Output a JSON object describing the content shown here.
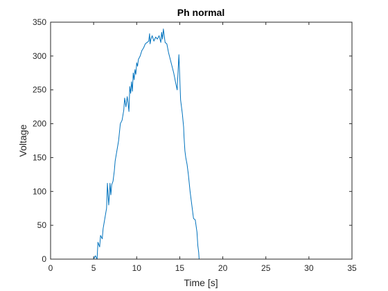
{
  "chart_data": {
    "type": "line",
    "title": "Ph normal",
    "xlabel": "Time [s]",
    "ylabel": "Voltage",
    "xlim": [
      0,
      35
    ],
    "ylim": [
      0,
      350
    ],
    "xticks": [
      0,
      5,
      10,
      15,
      20,
      25,
      30,
      35
    ],
    "yticks": [
      0,
      50,
      100,
      150,
      200,
      250,
      300,
      350
    ],
    "grid": false,
    "line_color": "#0072BD",
    "series": [
      {
        "x": [
          0,
          5.0,
          5.2,
          5.4,
          5.5,
          5.7,
          5.8,
          6.0,
          6.1,
          6.3,
          6.5,
          6.6,
          6.75,
          6.85,
          6.9,
          7.0,
          7.1,
          7.25,
          7.4,
          7.5,
          7.7,
          7.9,
          8.1,
          8.3,
          8.5,
          8.6,
          8.75,
          8.9,
          9.0,
          9.1,
          9.2,
          9.3,
          9.4,
          9.5,
          9.6,
          9.7,
          9.8,
          9.9,
          10.0,
          10.1,
          10.2,
          10.4,
          10.6,
          10.8,
          11.0,
          11.2,
          11.4,
          11.5,
          11.55,
          11.65,
          11.8,
          12.0,
          12.2,
          12.4,
          12.6,
          12.8,
          12.9,
          13.0,
          13.1,
          13.3,
          13.5,
          13.7,
          13.9,
          14.1,
          14.3,
          14.5,
          14.7,
          14.9,
          15.1,
          15.3,
          15.45,
          15.5,
          15.55,
          15.6,
          15.7,
          15.85,
          16.0,
          16.2,
          16.4,
          16.6,
          16.8,
          17.0,
          17.1,
          17.2,
          17.25,
          17.3,
          17.35,
          17.4,
          17.6,
          17.8,
          17.9,
          18.0,
          18.1,
          18.2,
          18.3,
          18.4,
          18.5,
          18.7,
          19.0,
          35
        ],
        "y": [
          0,
          0,
          5,
          0,
          25,
          18,
          35,
          30,
          45,
          60,
          75,
          112,
          80,
          100,
          112,
          95,
          110,
          115,
          130,
          145,
          160,
          175,
          200,
          205,
          220,
          238,
          225,
          240,
          230,
          218,
          255,
          245,
          262,
          248,
          275,
          265,
          280,
          273,
          290,
          285,
          295,
          300,
          308,
          312,
          318,
          320,
          322,
          333,
          318,
          325,
          330,
          322,
          328,
          325,
          330,
          320,
          335,
          325,
          340,
          320,
          318,
          305,
          295,
          285,
          275,
          262,
          250,
          302,
          235,
          215,
          195,
          180,
          170,
          160,
          150,
          140,
          125,
          100,
          80,
          60,
          58,
          40,
          20,
          10,
          0,
          0,
          0,
          0,
          0,
          0,
          0,
          0,
          0,
          0,
          0,
          0,
          0,
          0,
          0,
          0
        ]
      }
    ]
  }
}
